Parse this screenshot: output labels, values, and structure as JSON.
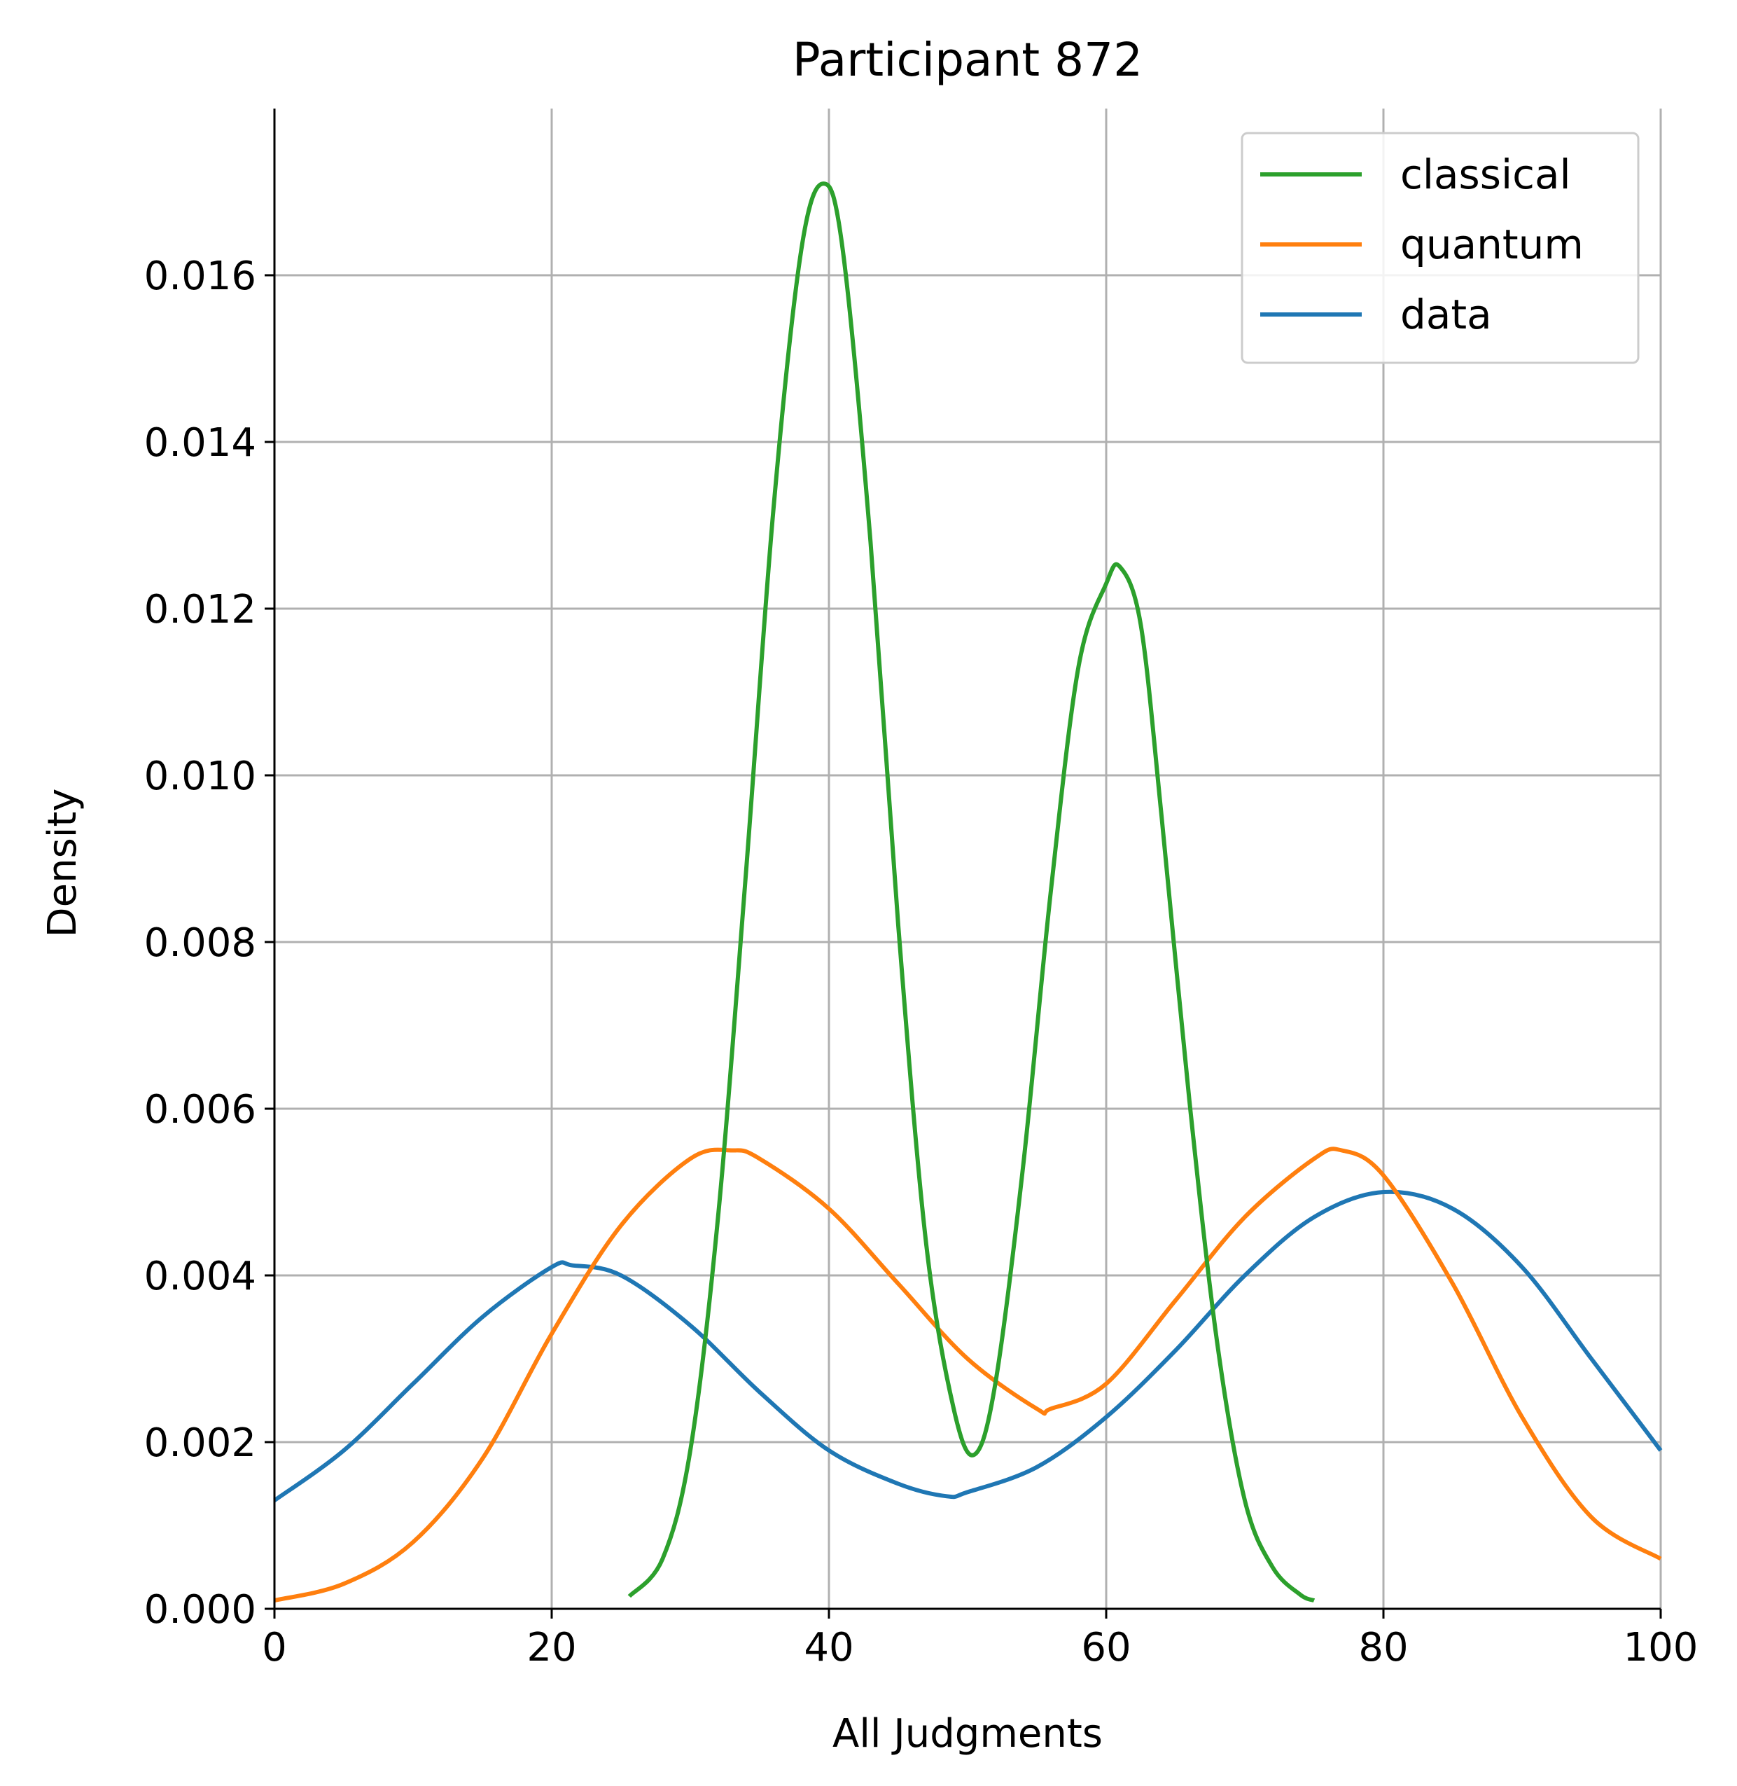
{
  "chart_data": {
    "type": "line",
    "title": "Participant 872",
    "xlabel": "All Judgments",
    "ylabel": "Density",
    "xlim": [
      0,
      100
    ],
    "ylim": [
      0,
      0.018
    ],
    "xticks": [
      "0",
      "20",
      "40",
      "60",
      "80",
      "100"
    ],
    "yticks": [
      "0.000",
      "0.002",
      "0.004",
      "0.006",
      "0.008",
      "0.010",
      "0.012",
      "0.014",
      "0.016"
    ],
    "grid": true,
    "legend_position": "top-right",
    "series": [
      {
        "name": "classical",
        "color": "#2ca02c",
        "x": [
          25.6,
          28,
          30,
          32,
          34,
          36,
          38,
          39.6,
          41,
          43,
          45,
          47,
          49,
          50.5,
          52,
          54,
          56,
          58,
          60,
          61,
          62.5,
          64,
          66,
          68,
          70,
          72,
          74,
          75
        ],
        "y": [
          0.00015,
          0.0006,
          0.0019,
          0.0047,
          0.0088,
          0.0132,
          0.0163,
          0.0171,
          0.0163,
          0.0128,
          0.0082,
          0.0044,
          0.0024,
          0.00185,
          0.0027,
          0.0053,
          0.0086,
          0.0113,
          0.0123,
          0.0125,
          0.0118,
          0.0095,
          0.0061,
          0.0032,
          0.0013,
          0.0005,
          0.00017,
          0.0001
        ]
      },
      {
        "name": "quantum",
        "color": "#ff7f0e",
        "x": [
          0,
          5,
          10,
          15,
          20,
          25,
          30,
          33,
          35,
          40,
          45,
          50,
          55,
          56,
          60,
          65,
          70,
          75,
          77,
          80,
          85,
          90,
          95,
          100
        ],
        "y": [
          0.0001,
          0.0003,
          0.0008,
          0.0018,
          0.0033,
          0.0046,
          0.0054,
          0.0055,
          0.0054,
          0.0048,
          0.0039,
          0.003,
          0.0024,
          0.0024,
          0.0027,
          0.0037,
          0.0047,
          0.0054,
          0.0055,
          0.0052,
          0.0039,
          0.0023,
          0.0011,
          0.0006
        ]
      },
      {
        "name": "data",
        "color": "#1f77b4",
        "x": [
          0,
          5,
          10,
          15,
          20,
          21.5,
          25,
          30,
          35,
          40,
          45,
          48.5,
          50,
          55,
          60,
          65,
          70,
          75,
          80,
          85,
          90,
          95,
          100
        ],
        "y": [
          0.0013,
          0.0019,
          0.0027,
          0.0035,
          0.0041,
          0.00412,
          0.004,
          0.0034,
          0.0026,
          0.0019,
          0.0015,
          0.00135,
          0.0014,
          0.0017,
          0.0023,
          0.0031,
          0.004,
          0.0047,
          0.005,
          0.0048,
          0.0041,
          0.003,
          0.0019
        ]
      }
    ]
  }
}
